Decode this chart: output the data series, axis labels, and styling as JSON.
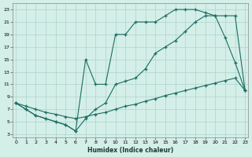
{
  "xlabel": "Humidex (Indice chaleur)",
  "bg_color": "#d4eee8",
  "grid_color": "#aed4cc",
  "line_color": "#1a6e62",
  "xlim_min": -0.3,
  "xlim_max": 23.3,
  "ylim_min": 2.5,
  "ylim_max": 24,
  "xticks": [
    0,
    1,
    2,
    3,
    4,
    5,
    6,
    7,
    8,
    9,
    10,
    11,
    12,
    13,
    14,
    15,
    16,
    17,
    18,
    19,
    20,
    21,
    22,
    23
  ],
  "yticks": [
    3,
    5,
    7,
    9,
    11,
    13,
    15,
    17,
    19,
    21,
    23
  ],
  "curve1_x": [
    0,
    1,
    2,
    3,
    4,
    5,
    6,
    7,
    8,
    9,
    10,
    11,
    12,
    13,
    14,
    15,
    16,
    17,
    18,
    19,
    20,
    21,
    22,
    23
  ],
  "curve1_y": [
    8,
    7,
    6,
    5.5,
    5,
    4.5,
    3.5,
    15,
    11,
    11,
    19,
    19,
    21,
    21,
    21,
    22,
    23,
    23,
    23,
    22.5,
    22,
    18.5,
    14.5,
    10
  ],
  "curve2_x": [
    0,
    1,
    2,
    3,
    4,
    5,
    6,
    7,
    8,
    9,
    10,
    11,
    12,
    13,
    14,
    15,
    16,
    17,
    18,
    19,
    20,
    21,
    22,
    23
  ],
  "curve2_y": [
    8,
    7,
    6,
    5.5,
    5,
    4.5,
    3.5,
    5.5,
    7,
    8,
    11,
    11.5,
    12,
    13.5,
    16,
    17,
    18,
    19.5,
    21,
    22,
    22,
    22,
    22,
    10
  ],
  "curve3_x": [
    0,
    1,
    2,
    3,
    4,
    5,
    6,
    7,
    8,
    9,
    10,
    11,
    12,
    13,
    14,
    15,
    16,
    17,
    18,
    19,
    20,
    21,
    22,
    23
  ],
  "curve3_y": [
    8,
    7.5,
    7,
    6.5,
    6.2,
    5.8,
    5.5,
    5.8,
    6.2,
    6.5,
    7,
    7.5,
    7.8,
    8.3,
    8.7,
    9.2,
    9.6,
    10,
    10.4,
    10.8,
    11.2,
    11.6,
    12,
    10
  ]
}
